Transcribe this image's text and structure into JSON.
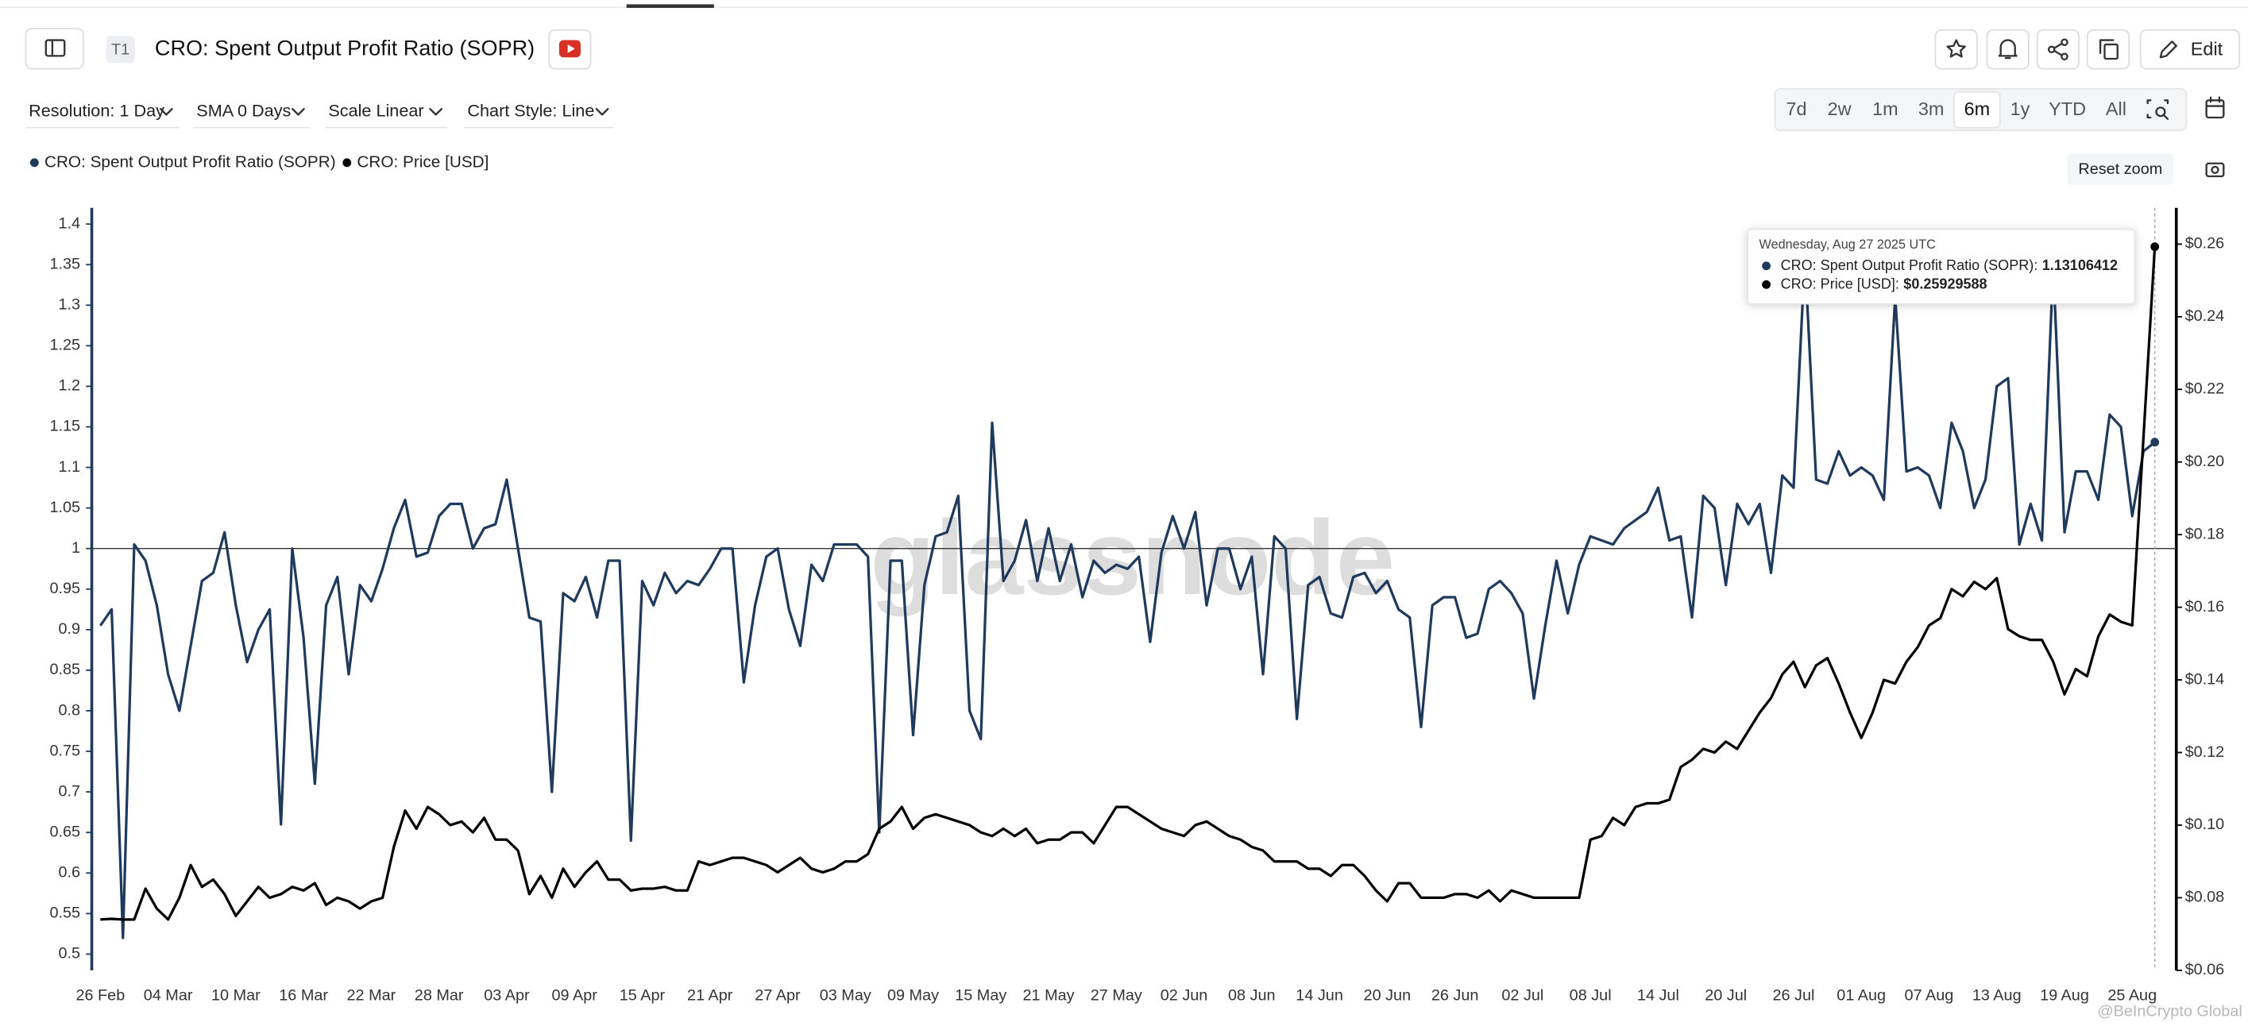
{
  "header": {
    "tag": "T1",
    "title": "CRO: Spent Output Profit Ratio (SOPR)",
    "edit": "Edit"
  },
  "controls": {
    "resolution": "Resolution: 1 Day",
    "sma": "SMA 0 Days",
    "scale": "Scale Linear",
    "style": "Chart Style: Line",
    "ranges": [
      "7d",
      "2w",
      "1m",
      "3m",
      "6m",
      "1y",
      "YTD",
      "All"
    ],
    "active_range": 4,
    "reset": "Reset zoom"
  },
  "tooltip": {
    "date": "Wednesday, Aug 27 2025 UTC",
    "rows": [
      {
        "label": "CRO: Spent Output Profit Ratio (SOPR):",
        "value": "1.13106412"
      },
      {
        "label": "CRO: Price [USD]:",
        "value": "$0.25929588"
      }
    ]
  },
  "watermarks": [
    "glassnode",
    "@BeInCrypto Global"
  ],
  "chart_data": {
    "type": "line",
    "categories": [
      "26 Feb",
      null,
      null,
      null,
      null,
      null,
      "04 Mar",
      null,
      null,
      null,
      null,
      null,
      "10 Mar",
      null,
      null,
      null,
      null,
      null,
      "16 Mar",
      null,
      null,
      null,
      null,
      null,
      "22 Mar",
      null,
      null,
      null,
      null,
      null,
      "28 Mar",
      null,
      null,
      null,
      null,
      null,
      "03 Apr",
      null,
      null,
      null,
      null,
      null,
      "09 Apr",
      null,
      null,
      null,
      null,
      null,
      "15 Apr",
      null,
      null,
      null,
      null,
      null,
      "21 Apr",
      null,
      null,
      null,
      null,
      null,
      "27 Apr",
      null,
      null,
      null,
      null,
      null,
      "03 May",
      null,
      null,
      null,
      null,
      null,
      "09 May",
      null,
      null,
      null,
      null,
      null,
      "15 May",
      null,
      null,
      null,
      null,
      null,
      "21 May",
      null,
      null,
      null,
      null,
      null,
      "27 May",
      null,
      null,
      null,
      null,
      null,
      "02 Jun",
      null,
      null,
      null,
      null,
      null,
      "08 Jun",
      null,
      null,
      null,
      null,
      null,
      "14 Jun",
      null,
      null,
      null,
      null,
      null,
      "20 Jun",
      null,
      null,
      null,
      null,
      null,
      "26 Jun",
      null,
      null,
      null,
      null,
      null,
      "02 Jul",
      null,
      null,
      null,
      null,
      null,
      "08 Jul",
      null,
      null,
      null,
      null,
      null,
      "14 Jul",
      null,
      null,
      null,
      null,
      null,
      "20 Jul",
      null,
      null,
      null,
      null,
      null,
      "26 Jul",
      null,
      null,
      null,
      null,
      null,
      "01 Aug",
      null,
      null,
      null,
      null,
      null,
      "07 Aug",
      null,
      null,
      null,
      null,
      null,
      "13 Aug",
      null,
      null,
      null,
      null,
      null,
      "19 Aug",
      null,
      null,
      null,
      null,
      null,
      "25 Aug",
      null,
      null
    ],
    "series": [
      {
        "name": "CRO: Spent Output Profit Ratio (SOPR)",
        "color": "#1f3a5c",
        "axis": "y",
        "values": [
          0.905,
          0.925,
          0.52,
          1.005,
          0.985,
          0.93,
          0.845,
          0.8,
          0.88,
          0.96,
          0.97,
          1.02,
          0.93,
          0.86,
          0.9,
          0.925,
          0.66,
          1,
          0.89,
          0.71,
          0.93,
          0.965,
          0.845,
          0.955,
          0.935,
          0.975,
          1.025,
          1.06,
          0.99,
          0.995,
          1.04,
          1.055,
          1.055,
          1,
          1.025,
          1.03,
          1.085,
          1,
          0.915,
          0.91,
          0.7,
          0.945,
          0.935,
          0.965,
          0.915,
          0.985,
          0.985,
          0.64,
          0.96,
          0.93,
          0.97,
          0.945,
          0.96,
          0.955,
          0.975,
          1,
          1,
          0.835,
          0.93,
          0.99,
          1,
          0.925,
          0.88,
          0.98,
          0.96,
          1.005,
          1.005,
          1.005,
          0.99,
          0.65,
          0.985,
          0.985,
          0.77,
          0.955,
          1.015,
          1.02,
          1.065,
          0.8,
          0.765,
          1.155,
          0.96,
          0.985,
          1.035,
          0.96,
          1.025,
          0.96,
          1.005,
          0.94,
          0.985,
          0.97,
          0.98,
          0.975,
          0.99,
          0.885,
          0.995,
          1.04,
          1,
          1.045,
          0.93,
          1,
          1,
          0.95,
          0.99,
          0.845,
          1.015,
          1,
          0.79,
          0.955,
          0.965,
          0.92,
          0.915,
          0.965,
          0.97,
          0.945,
          0.96,
          0.925,
          0.915,
          0.78,
          0.93,
          0.94,
          0.94,
          0.89,
          0.895,
          0.95,
          0.96,
          0.945,
          0.92,
          0.815,
          0.905,
          0.985,
          0.92,
          0.98,
          1.015,
          1.01,
          1.005,
          1.025,
          1.035,
          1.045,
          1.075,
          1.01,
          1.015,
          0.915,
          1.065,
          1.05,
          0.955,
          1.055,
          1.03,
          1.055,
          0.97,
          1.09,
          1.075,
          1.36,
          1.085,
          1.08,
          1.12,
          1.09,
          1.1,
          1.09,
          1.06,
          1.31,
          1.095,
          1.1,
          1.09,
          1.05,
          1.155,
          1.12,
          1.05,
          1.085,
          1.2,
          1.21,
          1.005,
          1.055,
          1.01,
          1.35,
          1.02,
          1.095,
          1.095,
          1.06,
          1.165,
          1.15,
          1.04,
          1.12,
          1.13106412
        ]
      },
      {
        "name": "CRO: Price [USD]",
        "color": "#000000",
        "axis": "y2",
        "values": [
          0.074,
          0.0742,
          0.074,
          0.074,
          0.0825,
          0.077,
          0.074,
          0.08,
          0.089,
          0.083,
          0.085,
          0.081,
          0.075,
          0.079,
          0.083,
          0.08,
          0.081,
          0.083,
          0.082,
          0.084,
          0.078,
          0.08,
          0.079,
          0.077,
          0.079,
          0.08,
          0.094,
          0.104,
          0.099,
          0.105,
          0.103,
          0.1,
          0.101,
          0.098,
          0.102,
          0.096,
          0.096,
          0.093,
          0.081,
          0.086,
          0.08,
          0.088,
          0.083,
          0.087,
          0.09,
          0.085,
          0.085,
          0.082,
          0.0825,
          0.0825,
          0.083,
          0.082,
          0.082,
          0.09,
          0.089,
          0.09,
          0.091,
          0.091,
          0.09,
          0.089,
          0.087,
          0.089,
          0.091,
          0.088,
          0.087,
          0.088,
          0.09,
          0.09,
          0.092,
          0.099,
          0.101,
          0.105,
          0.099,
          0.102,
          0.103,
          0.102,
          0.101,
          0.1,
          0.098,
          0.097,
          0.099,
          0.097,
          0.099,
          0.095,
          0.096,
          0.096,
          0.098,
          0.098,
          0.095,
          0.1,
          0.105,
          0.105,
          0.103,
          0.101,
          0.099,
          0.098,
          0.097,
          0.1,
          0.101,
          0.099,
          0.097,
          0.096,
          0.094,
          0.093,
          0.09,
          0.09,
          0.09,
          0.088,
          0.088,
          0.086,
          0.089,
          0.089,
          0.086,
          0.082,
          0.079,
          0.084,
          0.084,
          0.08,
          0.08,
          0.08,
          0.081,
          0.081,
          0.08,
          0.082,
          0.079,
          0.082,
          0.081,
          0.08,
          0.08,
          0.08,
          0.08,
          0.08,
          0.096,
          0.097,
          0.102,
          0.1,
          0.105,
          0.106,
          0.106,
          0.107,
          0.116,
          0.118,
          0.121,
          0.12,
          0.123,
          0.121,
          0.126,
          0.131,
          0.135,
          0.1415,
          0.145,
          0.138,
          0.144,
          0.146,
          0.139,
          0.131,
          0.124,
          0.131,
          0.14,
          0.139,
          0.145,
          0.149,
          0.155,
          0.157,
          0.165,
          0.163,
          0.167,
          0.165,
          0.168,
          0.154,
          0.152,
          0.151,
          0.151,
          0.145,
          0.136,
          0.143,
          0.141,
          0.152,
          0.158,
          0.156,
          0.155,
          0.207,
          0.25929588
        ]
      }
    ],
    "ylim": [
      0.48,
      1.42
    ],
    "yticks": [
      0.5,
      0.55,
      0.6,
      0.65,
      0.7,
      0.75,
      0.8,
      0.85,
      0.9,
      0.95,
      1,
      1.05,
      1.1,
      1.15,
      1.2,
      1.25,
      1.3,
      1.35,
      1.4
    ],
    "y2lim": [
      0.06,
      0.27
    ],
    "y2ticks": [
      {
        "value": 0.06,
        "label": "$0.06"
      },
      {
        "value": 0.08,
        "label": "$0.08"
      },
      {
        "value": 0.1,
        "label": "$0.10"
      },
      {
        "value": 0.12,
        "label": "$0.12"
      },
      {
        "value": 0.14,
        "label": "$0.14"
      },
      {
        "value": 0.16,
        "label": "$0.16"
      },
      {
        "value": 0.18,
        "label": "$0.18"
      },
      {
        "value": 0.2,
        "label": "$0.20"
      },
      {
        "value": 0.22,
        "label": "$0.22"
      },
      {
        "value": 0.24,
        "label": "$0.24"
      },
      {
        "value": 0.26,
        "label": "$0.26"
      }
    ],
    "reference_line": 1,
    "grid": false
  }
}
